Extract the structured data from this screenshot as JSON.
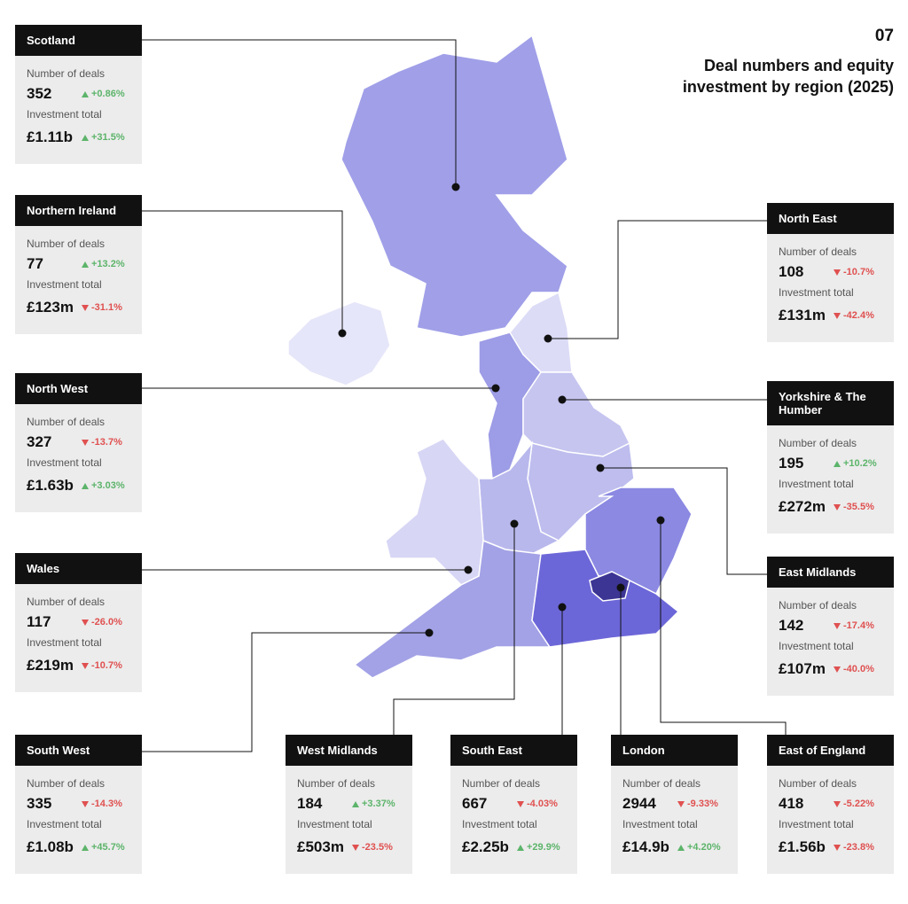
{
  "header": {
    "number": "07",
    "title": "Deal numbers and equity investment by region (2025)"
  },
  "labels": {
    "deals": "Number of deals",
    "investment": "Investment total"
  },
  "regions": [
    {
      "name": "Scotland",
      "deals": "352",
      "deals_change": "+0.86%",
      "investment": "£1.11b",
      "investment_change": "+31.5%"
    },
    {
      "name": "Northern Ireland",
      "deals": "77",
      "deals_change": "+13.2%",
      "investment": "£123m",
      "investment_change": "-31.1%"
    },
    {
      "name": "North West",
      "deals": "327",
      "deals_change": "-13.7%",
      "investment": "£1.63b",
      "investment_change": "+3.03%"
    },
    {
      "name": "Wales",
      "deals": "117",
      "deals_change": "-26.0%",
      "investment": "£219m",
      "investment_change": "-10.7%"
    },
    {
      "name": "South West",
      "deals": "335",
      "deals_change": "-14.3%",
      "investment": "£1.08b",
      "investment_change": "+45.7%"
    },
    {
      "name": "West Midlands",
      "deals": "184",
      "deals_change": "+3.37%",
      "investment": "£503m",
      "investment_change": "-23.5%"
    },
    {
      "name": "South East",
      "deals": "667",
      "deals_change": "-4.03%",
      "investment": "£2.25b",
      "investment_change": "+29.9%"
    },
    {
      "name": "London",
      "deals": "2944",
      "deals_change": "-9.33%",
      "investment": "£14.9b",
      "investment_change": "+4.20%"
    },
    {
      "name": "East of England",
      "deals": "418",
      "deals_change": "-5.22%",
      "investment": "£1.56b",
      "investment_change": "-23.8%"
    },
    {
      "name": "North East",
      "deals": "108",
      "deals_change": "-10.7%",
      "investment": "£131m",
      "investment_change": "-42.4%"
    },
    {
      "name": "Yorkshire & The Humber",
      "deals": "195",
      "deals_change": "+10.2%",
      "investment": "£272m",
      "investment_change": "-35.5%"
    },
    {
      "name": "East Midlands",
      "deals": "142",
      "deals_change": "-17.4%",
      "investment": "£107m",
      "investment_change": "-40.0%"
    }
  ]
}
